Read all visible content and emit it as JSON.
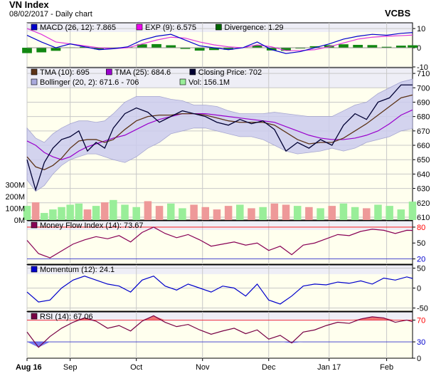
{
  "header": {
    "title": "VN Index",
    "subtitle": "08/02/2017 - Daily chart",
    "brand": "VCBS"
  },
  "colors": {
    "panel_bg": "#ffffee",
    "band_fill": "#ccccee",
    "line_blue": "#0000cc",
    "line_purple": "#b000b0",
    "line_magenta": "#cc44cc",
    "tma10": "#5c3317",
    "tma25": "#9900cc",
    "close": "#000033",
    "vol_up": "#99ee99",
    "vol_down": "#ee9999",
    "mfi_line": "#880055",
    "rsi_line": "#770044",
    "level_red": "#ff0000"
  },
  "x_axis": {
    "labels": [
      "Aug 16",
      "Sep",
      "Oct",
      "Nov",
      "Dec",
      "Jan 17",
      "Feb"
    ],
    "label_index": [
      0,
      15,
      38,
      61,
      84,
      105,
      125
    ]
  },
  "chart_data": [
    {
      "panel": "MACD",
      "type": "line",
      "legend": [
        "MACD (26, 12): 7.865",
        "EXP (9): 6.575",
        "Divergence: 1.29"
      ],
      "legend_colors": [
        "#0000cc",
        "#ee00ee",
        "#006600"
      ],
      "ylim": [
        -10,
        13
      ],
      "ticks": [
        10,
        0,
        -10
      ],
      "x": [
        0,
        5,
        10,
        15,
        20,
        25,
        30,
        35,
        40,
        45,
        50,
        55,
        60,
        65,
        70,
        75,
        80,
        85,
        90,
        95,
        100,
        105,
        110,
        115,
        120,
        125,
        130,
        134
      ],
      "series": [
        {
          "name": "MACD (26, 12)",
          "values": [
            6.5,
            3,
            0,
            2,
            0.5,
            -1,
            -0.5,
            0.5,
            4,
            6,
            7,
            4,
            1,
            0,
            -1,
            0,
            3,
            -1,
            -3,
            -2,
            0,
            2,
            4.5,
            6,
            7,
            6.5,
            7.5,
            7.9
          ]
        },
        {
          "name": "EXP (9)",
          "values": [
            10,
            7,
            3,
            2,
            1,
            0,
            -0.5,
            0,
            2,
            4,
            5.5,
            5,
            3,
            1.5,
            0.5,
            0,
            1.5,
            0.5,
            -1.5,
            -1.5,
            -1,
            0.5,
            2.5,
            4.5,
            5.5,
            6,
            6.3,
            6.6
          ]
        },
        {
          "name": "Divergence",
          "values": [
            -2.8,
            -2.4,
            -1.6,
            0.2,
            0.5,
            -0.8,
            -0.3,
            0.3,
            1.8,
            1.9,
            1.3,
            -0.6,
            -1.5,
            -1.2,
            -1,
            0.2,
            1.2,
            -1.4,
            -1.6,
            -0.4,
            0.8,
            1.3,
            1.8,
            1.5,
            1.4,
            0.5,
            1.1,
            1.29
          ]
        }
      ]
    },
    {
      "panel": "Price",
      "type": "line",
      "legend": [
        "TMA (10): 695",
        "TMA (25): 684.6",
        "Closing Price: 702",
        "Bollinger (20, 2): 671.6 - 706",
        "Vol: 156.1M"
      ],
      "legend_colors": [
        "#5c3317",
        "#9900cc",
        "#000033",
        "#aaaadd",
        "#99ee99"
      ],
      "ylim": [
        608,
        714
      ],
      "ticks": [
        710,
        700,
        690,
        680,
        670,
        660,
        650,
        640,
        630,
        620,
        610
      ],
      "vol_ticks": [
        "300M",
        "200M",
        "100M",
        "0M"
      ],
      "vol_tick_values": [
        300,
        200,
        100,
        0
      ],
      "vol_max": 350,
      "x": [
        0,
        3,
        6,
        9,
        12,
        15,
        18,
        21,
        24,
        27,
        30,
        34,
        38,
        42,
        46,
        50,
        54,
        58,
        62,
        66,
        70,
        74,
        78,
        82,
        86,
        90,
        94,
        98,
        102,
        106,
        110,
        114,
        118,
        122,
        126,
        130,
        134
      ],
      "series": [
        {
          "name": "Closing Price",
          "values": [
            650,
            629,
            648,
            658,
            664,
            666,
            670,
            656,
            662,
            658,
            672,
            682,
            686,
            683,
            676,
            680,
            684,
            682,
            680,
            676,
            674,
            678,
            675,
            677,
            671,
            656,
            662,
            658,
            664,
            660,
            674,
            682,
            678,
            690,
            693,
            702,
            702
          ]
        },
        {
          "name": "TMA (10)",
          "values": [
            652,
            645,
            643,
            646,
            651,
            658,
            663,
            664,
            664,
            662,
            664,
            671,
            677,
            680,
            681,
            681,
            682,
            682,
            681,
            679,
            677,
            676,
            676,
            676,
            674,
            669,
            664,
            661,
            662,
            662,
            665,
            670,
            675,
            681,
            687,
            693,
            695
          ]
        },
        {
          "name": "TMA (25)",
          "values": [
            663,
            660,
            655,
            652,
            650,
            652,
            656,
            659,
            661,
            663,
            665,
            667,
            671,
            675,
            678,
            680,
            682,
            682,
            682,
            681,
            680,
            679,
            678,
            677,
            676,
            673,
            670,
            667,
            665,
            664,
            664,
            665,
            667,
            670,
            675,
            681,
            684.6
          ]
        },
        {
          "name": "Bollinger upper",
          "values": [
            672,
            665,
            662,
            668,
            672,
            675,
            677,
            677,
            676,
            677,
            682,
            690,
            694,
            694,
            694,
            692,
            691,
            688,
            688,
            687,
            684,
            682,
            682,
            682,
            683,
            682,
            681,
            680,
            680,
            680,
            684,
            688,
            690,
            696,
            700,
            704,
            706
          ]
        },
        {
          "name": "Bollinger lower",
          "values": [
            636,
            628,
            632,
            640,
            646,
            650,
            652,
            654,
            654,
            652,
            650,
            648,
            652,
            658,
            662,
            668,
            670,
            672,
            672,
            670,
            668,
            666,
            666,
            664,
            660,
            656,
            654,
            655,
            656,
            658,
            656,
            658,
            662,
            664,
            666,
            670,
            671.6
          ]
        }
      ],
      "volume": [
        120,
        150,
        60,
        90,
        110,
        130,
        140,
        90,
        120,
        150,
        170,
        130,
        110,
        160,
        120,
        140,
        100,
        130,
        110,
        90,
        120,
        130,
        100,
        110,
        140,
        130,
        120,
        110,
        100,
        120,
        140,
        110,
        100,
        130,
        120,
        90,
        156.1
      ]
    },
    {
      "panel": "Money Flow Index",
      "type": "line",
      "legend": [
        "Money Flow Index (14): 73.67"
      ],
      "legend_colors": [
        "#880055"
      ],
      "ylim": [
        10,
        92
      ],
      "ticks": [
        80,
        50,
        20
      ],
      "levels": [
        80,
        20
      ],
      "x": [
        0,
        4,
        8,
        12,
        16,
        20,
        24,
        28,
        32,
        36,
        40,
        44,
        48,
        52,
        56,
        60,
        64,
        68,
        72,
        76,
        80,
        84,
        88,
        92,
        96,
        100,
        104,
        108,
        112,
        116,
        120,
        124,
        128,
        132,
        134
      ],
      "series": [
        {
          "name": "Money Flow Index (14)",
          "values": [
            55,
            30,
            22,
            35,
            48,
            56,
            62,
            58,
            64,
            52,
            70,
            80,
            68,
            60,
            66,
            56,
            44,
            48,
            52,
            46,
            50,
            36,
            44,
            28,
            46,
            50,
            58,
            66,
            64,
            72,
            76,
            74,
            68,
            74,
            73.67
          ]
        }
      ]
    },
    {
      "panel": "Momentum",
      "type": "line",
      "legend": [
        "Momentum (12): 24.1"
      ],
      "legend_colors": [
        "#0000cc"
      ],
      "ylim": [
        -58,
        58
      ],
      "ticks": [
        50,
        0,
        -50
      ],
      "x": [
        0,
        4,
        8,
        12,
        16,
        20,
        24,
        28,
        32,
        36,
        40,
        44,
        48,
        52,
        56,
        60,
        64,
        68,
        72,
        76,
        80,
        84,
        88,
        92,
        96,
        100,
        104,
        108,
        112,
        116,
        120,
        124,
        128,
        132,
        134
      ],
      "series": [
        {
          "name": "Momentum (12)",
          "values": [
            -10,
            -35,
            -30,
            0,
            20,
            30,
            20,
            10,
            5,
            -10,
            20,
            30,
            5,
            -5,
            10,
            0,
            -10,
            5,
            0,
            -20,
            10,
            -30,
            -40,
            -20,
            5,
            10,
            8,
            15,
            12,
            18,
            10,
            25,
            20,
            28,
            24.1
          ]
        }
      ]
    },
    {
      "panel": "RSI",
      "type": "line",
      "legend": [
        "RSI (14): 67.06"
      ],
      "legend_colors": [
        "#770044"
      ],
      "ylim": [
        0,
        85
      ],
      "ticks": [
        70,
        30,
        0
      ],
      "levels": [
        70,
        30
      ],
      "x": [
        0,
        4,
        8,
        12,
        16,
        20,
        24,
        28,
        32,
        36,
        40,
        44,
        48,
        52,
        56,
        60,
        64,
        68,
        72,
        76,
        80,
        84,
        88,
        92,
        96,
        100,
        104,
        108,
        112,
        116,
        120,
        124,
        128,
        132,
        134
      ],
      "series": [
        {
          "name": "RSI (14)",
          "values": [
            48,
            20,
            40,
            55,
            66,
            74,
            68,
            55,
            60,
            50,
            68,
            78,
            66,
            58,
            62,
            52,
            44,
            50,
            55,
            45,
            52,
            35,
            42,
            28,
            48,
            52,
            60,
            66,
            64,
            72,
            76,
            74,
            66,
            70,
            67.06
          ]
        }
      ]
    }
  ]
}
